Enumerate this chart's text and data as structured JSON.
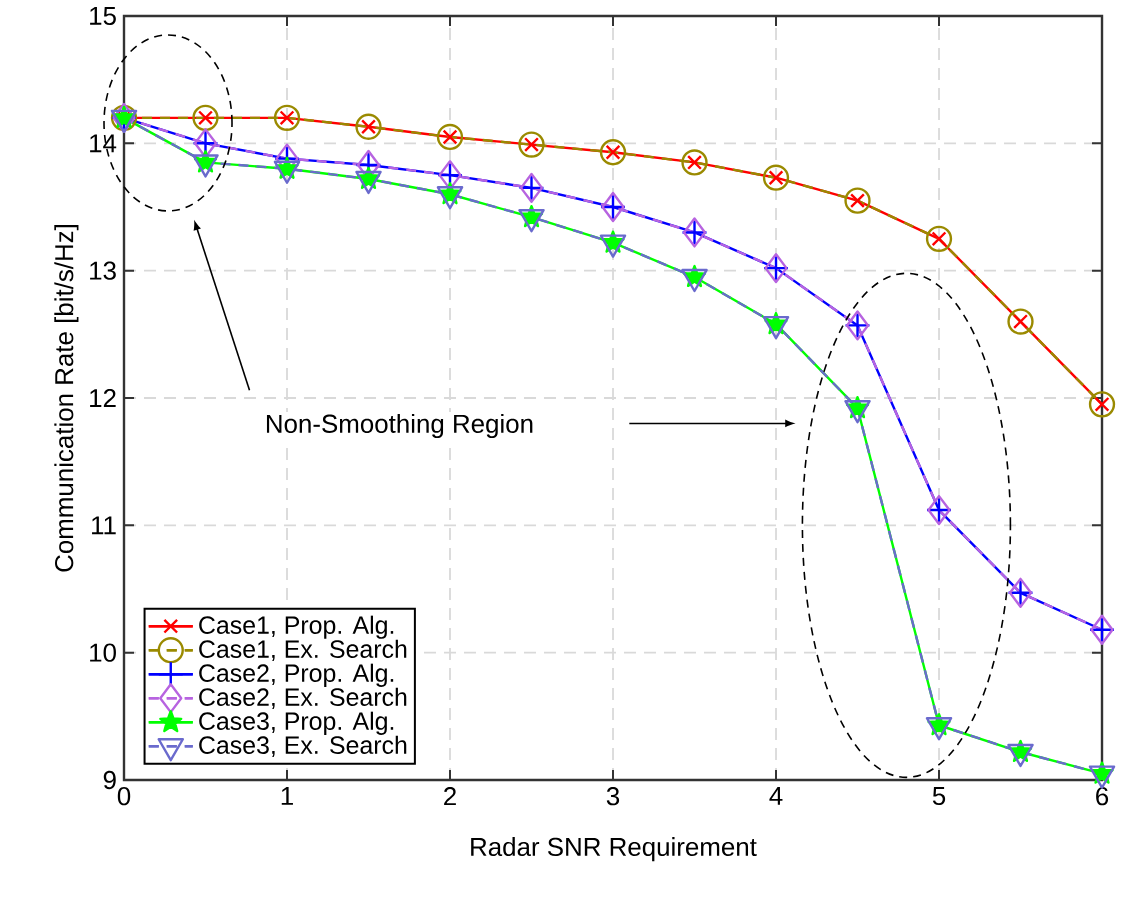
{
  "chart_data": {
    "type": "line",
    "xlabel": "Radar SNR Requirement",
    "ylabel": "Communication Rate [bit/s/Hz]",
    "x": [
      0,
      0.5,
      1,
      1.5,
      2,
      2.5,
      3,
      3.5,
      4,
      4.5,
      5,
      5.5,
      6
    ],
    "series": [
      {
        "name": "Case1, Prop. Alg.",
        "color": "#ff0000",
        "marker": "cross",
        "line_style": "solid",
        "values": [
          14.2,
          14.2,
          14.2,
          14.13,
          14.05,
          13.99,
          13.93,
          13.85,
          13.73,
          13.55,
          13.25,
          12.6,
          11.95
        ]
      },
      {
        "name": "Case1, Ex. Search",
        "color": "#9a8a00",
        "marker": "circle",
        "line_style": "dashed",
        "values": [
          14.2,
          14.2,
          14.2,
          14.13,
          14.05,
          13.99,
          13.93,
          13.85,
          13.73,
          13.55,
          13.25,
          12.6,
          11.95
        ]
      },
      {
        "name": "Case2, Prop. Alg.",
        "color": "#0000ff",
        "marker": "plus",
        "line_style": "solid",
        "values": [
          14.2,
          14.0,
          13.88,
          13.83,
          13.75,
          13.65,
          13.5,
          13.3,
          13.02,
          12.57,
          11.12,
          10.47,
          10.18
        ]
      },
      {
        "name": "Case2, Ex. Search",
        "color": "#b763e0",
        "marker": "diamond",
        "line_style": "dashed",
        "values": [
          14.2,
          14.0,
          13.88,
          13.83,
          13.75,
          13.65,
          13.5,
          13.3,
          13.02,
          12.57,
          11.12,
          10.47,
          10.18
        ]
      },
      {
        "name": "Case3, Prop. Alg.",
        "color": "#00ff00",
        "marker": "star",
        "line_style": "solid",
        "values": [
          14.2,
          13.85,
          13.8,
          13.72,
          13.6,
          13.42,
          13.22,
          12.95,
          12.58,
          11.92,
          9.43,
          9.22,
          9.05
        ]
      },
      {
        "name": "Case3, Ex. Search",
        "color": "#6a6acd",
        "marker": "triangle",
        "line_style": "dashed",
        "values": [
          14.2,
          13.85,
          13.8,
          13.72,
          13.6,
          13.42,
          13.22,
          12.95,
          12.58,
          11.92,
          9.43,
          9.22,
          9.05
        ]
      }
    ],
    "xlim": [
      0,
      6
    ],
    "ylim": [
      9,
      15
    ],
    "xticks": [
      0,
      1,
      2,
      3,
      4,
      5,
      6
    ],
    "yticks": [
      9,
      10,
      11,
      12,
      13,
      14,
      15
    ],
    "grid": true,
    "legend": "bottom left",
    "annotations": [
      "Non-Smoothing Region"
    ]
  }
}
